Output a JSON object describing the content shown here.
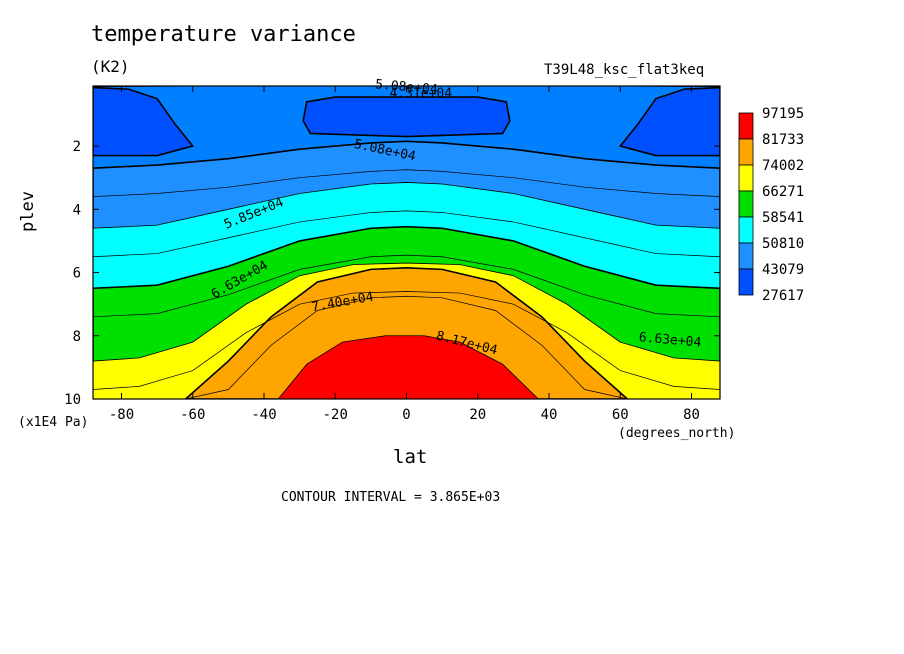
{
  "chart_data": {
    "type": "contour",
    "title": "temperature variance",
    "units": "(K2)",
    "experiment": "T39L48_ksc_flat3keq",
    "xlabel": "lat",
    "ylabel": "plev",
    "x_units": "(degrees_north)",
    "y_units": "(x1E4 Pa)",
    "contour_interval_text": "CONTOUR INTERVAL = 3.865E+03",
    "xlim": [
      -88,
      88
    ],
    "ylim": [
      10,
      0.1
    ],
    "x_ticks": [
      "-80",
      "-60",
      "-40",
      "-20",
      "0",
      "20",
      "40",
      "60",
      "80"
    ],
    "y_ticks": [
      "2",
      "4",
      "6",
      "8",
      "10"
    ],
    "legend": [
      {
        "label": "97195",
        "color": "#ff0000"
      },
      {
        "label": "81733",
        "color": "#ffa500"
      },
      {
        "label": "74002",
        "color": "#ffff00"
      },
      {
        "label": "66271",
        "color": "#00e000"
      },
      {
        "label": "58541",
        "color": "#00ffff"
      },
      {
        "label": "50810",
        "color": "#1e90ff"
      },
      {
        "label": "43079",
        "color": "#0050ff"
      },
      {
        "label": "27617",
        "color": ""
      }
    ],
    "contour_labels": [
      {
        "text": "5.08e+04",
        "x": -6,
        "y": 2.1,
        "angle": 12
      },
      {
        "text": "5.85e+04",
        "x": -43,
        "y": 4.1,
        "angle": -22
      },
      {
        "text": "6.63e+04",
        "x": -47,
        "y": 6.2,
        "angle": -30
      },
      {
        "text": "7.40e+04",
        "x": -18,
        "y": 6.9,
        "angle": -10
      },
      {
        "text": "8.17e+04",
        "x": 17,
        "y": 8.2,
        "angle": 14
      },
      {
        "text": "6.63e+04",
        "x": 74,
        "y": 8.1,
        "angle": 5
      },
      {
        "text": "5.08e+04",
        "x": 0,
        "y": 0.1,
        "angle": 5
      },
      {
        "text": "4.31e+04",
        "x": 4,
        "y": 0.3,
        "angle": 0
      }
    ],
    "bands": [
      {
        "color": "#1e90ff",
        "boundary": [
          [
            -88,
            2.7
          ],
          [
            -70,
            2.6
          ],
          [
            -50,
            2.4
          ],
          [
            -30,
            2.1
          ],
          [
            -10,
            1.9
          ],
          [
            0,
            1.85
          ],
          [
            10,
            1.9
          ],
          [
            30,
            2.1
          ],
          [
            50,
            2.4
          ],
          [
            70,
            2.6
          ],
          [
            88,
            2.7
          ]
        ]
      },
      {
        "color": "#00ffff",
        "boundary": [
          [
            -88,
            4.6
          ],
          [
            -70,
            4.5
          ],
          [
            -50,
            4.0
          ],
          [
            -30,
            3.5
          ],
          [
            -10,
            3.2
          ],
          [
            0,
            3.15
          ],
          [
            10,
            3.2
          ],
          [
            30,
            3.5
          ],
          [
            50,
            4.0
          ],
          [
            70,
            4.5
          ],
          [
            88,
            4.6
          ]
        ]
      },
      {
        "color": "#00e000",
        "boundary": [
          [
            -88,
            6.5
          ],
          [
            -70,
            6.4
          ],
          [
            -50,
            5.8
          ],
          [
            -30,
            5.0
          ],
          [
            -10,
            4.6
          ],
          [
            0,
            4.55
          ],
          [
            10,
            4.6
          ],
          [
            30,
            5.0
          ],
          [
            50,
            5.8
          ],
          [
            70,
            6.4
          ],
          [
            88,
            6.5
          ]
        ]
      },
      {
        "color": "#ffff00",
        "boundary": [
          [
            -88,
            8.8
          ],
          [
            -75,
            8.7
          ],
          [
            -60,
            8.2
          ],
          [
            -45,
            7.0
          ],
          [
            -30,
            6.1
          ],
          [
            -15,
            5.75
          ],
          [
            0,
            5.7
          ],
          [
            15,
            5.75
          ],
          [
            30,
            6.1
          ],
          [
            45,
            7.0
          ],
          [
            60,
            8.2
          ],
          [
            75,
            8.7
          ],
          [
            88,
            8.8
          ]
        ]
      },
      {
        "color": "#ffa500",
        "boundary": [
          [
            -62,
            10
          ],
          [
            -50,
            8.8
          ],
          [
            -38,
            7.4
          ],
          [
            -25,
            6.3
          ],
          [
            -10,
            5.9
          ],
          [
            0,
            5.85
          ],
          [
            10,
            5.9
          ],
          [
            25,
            6.3
          ],
          [
            38,
            7.4
          ],
          [
            50,
            8.8
          ],
          [
            62,
            10
          ]
        ]
      },
      {
        "color": "#ff0000",
        "boundary": [
          [
            -36,
            10
          ],
          [
            -28,
            8.9
          ],
          [
            -18,
            8.2
          ],
          [
            -6,
            8.0
          ],
          [
            5,
            8.0
          ],
          [
            15,
            8.2
          ],
          [
            27,
            8.9
          ],
          [
            37,
            10
          ]
        ]
      }
    ],
    "top_blobs": [
      {
        "color": "#0050ff",
        "boundary": [
          [
            -88,
            0.15
          ],
          [
            -78,
            0.2
          ],
          [
            -70,
            0.5
          ],
          [
            -65,
            1.3
          ],
          [
            -60,
            2.0
          ],
          [
            -70,
            2.3
          ],
          [
            -82,
            2.3
          ],
          [
            -88,
            2.3
          ]
        ]
      },
      {
        "color": "#0050ff",
        "boundary": [
          [
            -20,
            0.45
          ],
          [
            20,
            0.45
          ],
          [
            28,
            0.6
          ],
          [
            29,
            1.2
          ],
          [
            27,
            1.6
          ],
          [
            0,
            1.7
          ],
          [
            -27,
            1.6
          ],
          [
            -29,
            1.2
          ],
          [
            -28,
            0.6
          ]
        ]
      },
      {
        "color": "#0050ff",
        "boundary": [
          [
            88,
            0.15
          ],
          [
            78,
            0.2
          ],
          [
            70,
            0.5
          ],
          [
            65,
            1.3
          ],
          [
            60,
            2.0
          ],
          [
            70,
            2.3
          ],
          [
            82,
            2.3
          ],
          [
            88,
            2.3
          ]
        ]
      }
    ]
  }
}
